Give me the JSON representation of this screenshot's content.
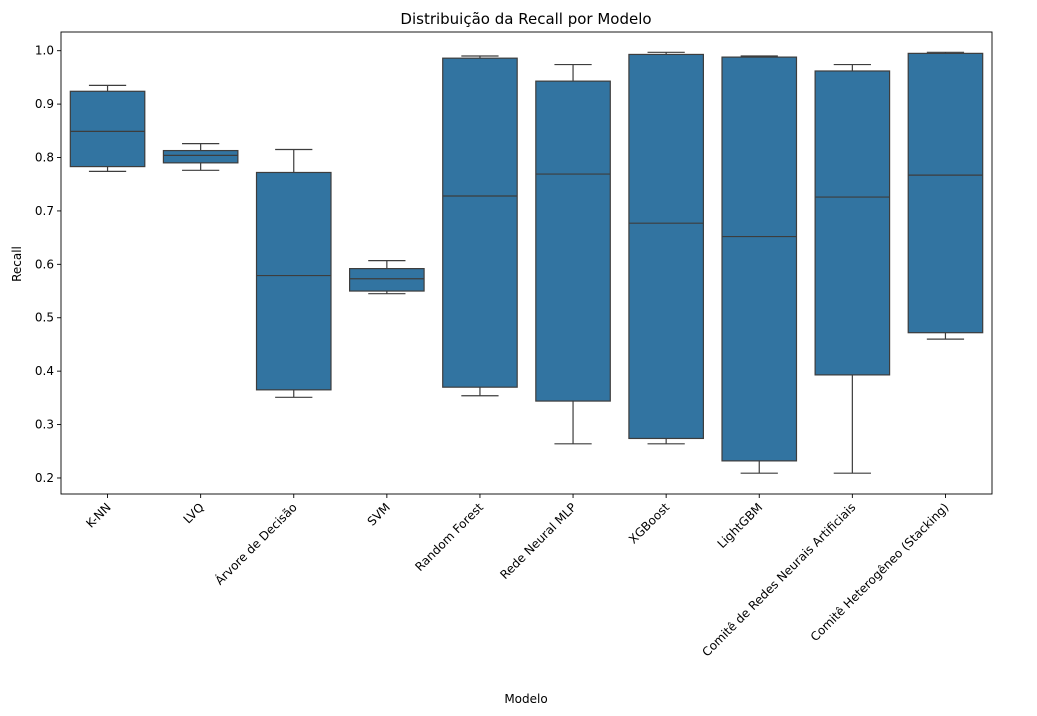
{
  "chart_data": {
    "type": "boxplot",
    "title": "Distribuição da Recall por Modelo",
    "xlabel": "Modelo",
    "ylabel": "Recall",
    "ylim": [
      0.17,
      1.035
    ],
    "yticks": [
      0.2,
      0.3,
      0.4,
      0.5,
      0.6,
      0.7,
      0.8,
      0.9,
      1.0
    ],
    "ytick_labels": [
      "0.2",
      "0.3",
      "0.4",
      "0.5",
      "0.6",
      "0.7",
      "0.8",
      "0.9",
      "1.0"
    ],
    "grid": false,
    "box_color": "#3274a1",
    "line_color": "#3d3d3d",
    "categories": [
      "K-NN",
      "LVQ",
      "Árvore de Decisão",
      "SVM",
      "Random Forest",
      "Rede Neural MLP",
      "XGBoost",
      "LightGBM",
      "Comitê de Redes Neurais Artificiais",
      "Comitê Heterogêneo (Stacking)"
    ],
    "boxes": [
      {
        "whislo": 0.774,
        "q1": 0.783,
        "med": 0.849,
        "q3": 0.924,
        "whishi": 0.935
      },
      {
        "whislo": 0.776,
        "q1": 0.79,
        "med": 0.804,
        "q3": 0.813,
        "whishi": 0.826
      },
      {
        "whislo": 0.351,
        "q1": 0.365,
        "med": 0.579,
        "q3": 0.772,
        "whishi": 0.815
      },
      {
        "whislo": 0.545,
        "q1": 0.55,
        "med": 0.573,
        "q3": 0.592,
        "whishi": 0.607
      },
      {
        "whislo": 0.354,
        "q1": 0.37,
        "med": 0.728,
        "q3": 0.986,
        "whishi": 0.99
      },
      {
        "whislo": 0.264,
        "q1": 0.344,
        "med": 0.769,
        "q3": 0.943,
        "whishi": 0.974
      },
      {
        "whislo": 0.264,
        "q1": 0.274,
        "med": 0.677,
        "q3": 0.993,
        "whishi": 0.997
      },
      {
        "whislo": 0.209,
        "q1": 0.232,
        "med": 0.652,
        "q3": 0.988,
        "whishi": 0.99
      },
      {
        "whislo": 0.209,
        "q1": 0.393,
        "med": 0.726,
        "q3": 0.962,
        "whishi": 0.974
      },
      {
        "whislo": 0.46,
        "q1": 0.472,
        "med": 0.767,
        "q3": 0.995,
        "whishi": 0.997
      }
    ]
  }
}
